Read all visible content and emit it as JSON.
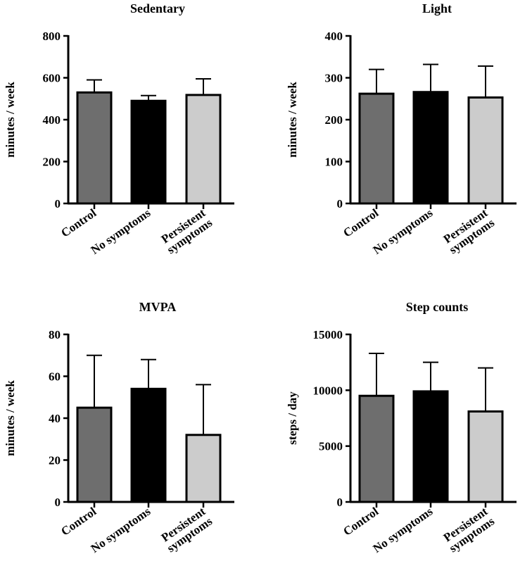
{
  "chart_data": [
    {
      "type": "bar",
      "title": "Sedentary",
      "ylabel": "minutes / week",
      "xlabel": "",
      "categories": [
        "Control",
        "No symptoms",
        "Persistent symptoms"
      ],
      "category_lines": [
        [
          "Control"
        ],
        [
          "No symptoms"
        ],
        [
          "Persistent",
          "symptoms"
        ]
      ],
      "values": [
        530,
        490,
        518
      ],
      "error_upper": [
        590,
        515,
        595
      ],
      "ylim": [
        0,
        800
      ],
      "yticks": [
        "0",
        "200",
        "400",
        "600",
        "800"
      ],
      "ytick_values": [
        0,
        200,
        400,
        600,
        800
      ],
      "bar_colors": [
        "#6e6e6e",
        "#000000",
        "#cccccc"
      ],
      "grid": false
    },
    {
      "type": "bar",
      "title": "Light",
      "ylabel": "minutes / week",
      "xlabel": "",
      "categories": [
        "Control",
        "No symptoms",
        "Persistent symptoms"
      ],
      "category_lines": [
        [
          "Control"
        ],
        [
          "No symptoms"
        ],
        [
          "Persistent",
          "symptoms"
        ]
      ],
      "values": [
        262,
        266,
        253
      ],
      "error_upper": [
        320,
        332,
        328
      ],
      "ylim": [
        0,
        400
      ],
      "yticks": [
        "0",
        "100",
        "200",
        "300",
        "400"
      ],
      "ytick_values": [
        0,
        100,
        200,
        300,
        400
      ],
      "bar_colors": [
        "#6e6e6e",
        "#000000",
        "#cccccc"
      ],
      "grid": false
    },
    {
      "type": "bar",
      "title": "MVPA",
      "ylabel": "minutes / week",
      "xlabel": "",
      "categories": [
        "Control",
        "No symptoms",
        "Persistent symptoms"
      ],
      "category_lines": [
        [
          "Control"
        ],
        [
          "No symptoms"
        ],
        [
          "Persistent",
          "symptoms"
        ]
      ],
      "values": [
        45,
        54,
        32
      ],
      "error_upper": [
        70,
        68,
        56
      ],
      "ylim": [
        0,
        80
      ],
      "yticks": [
        "0",
        "20",
        "40",
        "60",
        "80"
      ],
      "ytick_values": [
        0,
        20,
        40,
        60,
        80
      ],
      "bar_colors": [
        "#6e6e6e",
        "#000000",
        "#cccccc"
      ],
      "grid": false
    },
    {
      "type": "bar",
      "title": "Step counts",
      "ylabel": "steps / day",
      "xlabel": "",
      "categories": [
        "Control",
        "No symptoms",
        "Persistent symptoms"
      ],
      "category_lines": [
        [
          "Control"
        ],
        [
          "No symptoms"
        ],
        [
          "Persistent",
          "symptoms"
        ]
      ],
      "values": [
        9500,
        9900,
        8100
      ],
      "error_upper": [
        13300,
        12500,
        12000
      ],
      "ylim": [
        0,
        15000
      ],
      "yticks": [
        "0",
        "5000",
        "10000",
        "15000"
      ],
      "ytick_values": [
        0,
        5000,
        10000,
        15000
      ],
      "bar_colors": [
        "#6e6e6e",
        "#000000",
        "#cccccc"
      ],
      "grid": false
    }
  ]
}
